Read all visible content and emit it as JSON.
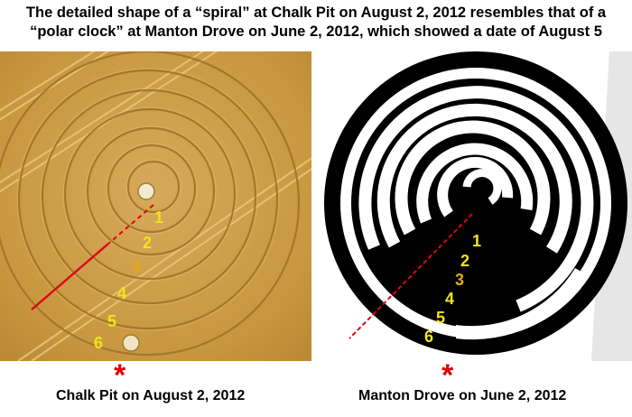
{
  "title": {
    "line1": "The detailed shape of a “spiral” at Chalk Pit on August 2, 2012 resembles that of a",
    "line2": "“polar clock” at Manton Drove on June 2, 2012, which showed a date of August 5"
  },
  "left": {
    "caption": "Chalk Pit on August 2, 2012",
    "marker": "*",
    "labels": [
      "1",
      "2",
      "3",
      "4",
      "5",
      "6"
    ]
  },
  "right": {
    "caption": "Manton Drove on June 2, 2012",
    "marker": "*",
    "labels": [
      "1",
      "2",
      "3",
      "4",
      "5",
      "6"
    ]
  },
  "colors": {
    "field": "#c99a42",
    "label_yellow": "#f2e21c",
    "label_orange": "#e6a817",
    "red_line": "#e0001a",
    "marker_red": "#e00000"
  }
}
